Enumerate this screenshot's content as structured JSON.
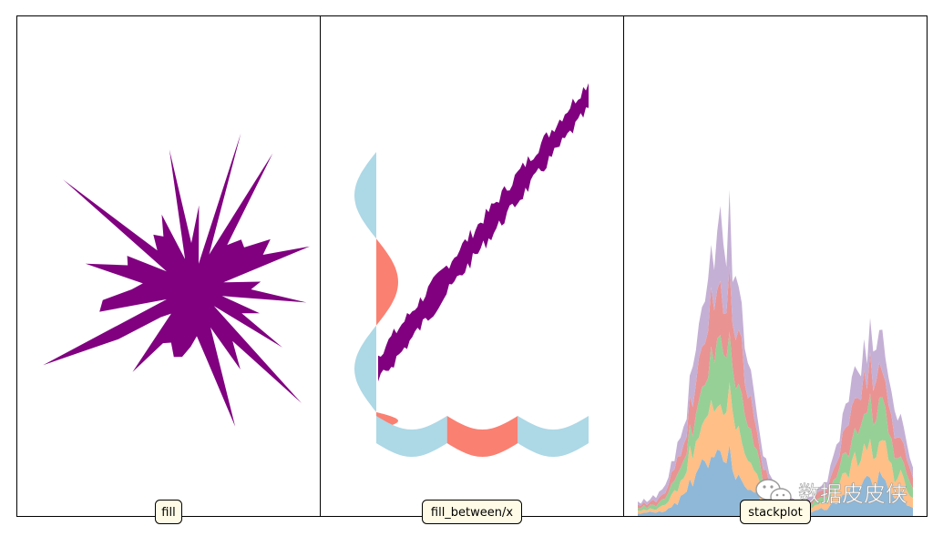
{
  "chart_data": [
    {
      "type": "area",
      "label": "fill",
      "color": "#800080",
      "description_axes": "none"
    },
    {
      "type": "area",
      "label": "fill_between/x",
      "colors": {
        "positive": "#fa8072",
        "negative": "#add8e6",
        "band": "#800080"
      }
    },
    {
      "type": "area",
      "label": "stackplot",
      "colors": [
        "#8fb8d8",
        "#ffbf86",
        "#96d096",
        "#e99393",
        "#c5b0d5"
      ]
    }
  ],
  "watermark": {
    "text": "数据皮皮侠",
    "icon": "wechat-icon"
  }
}
